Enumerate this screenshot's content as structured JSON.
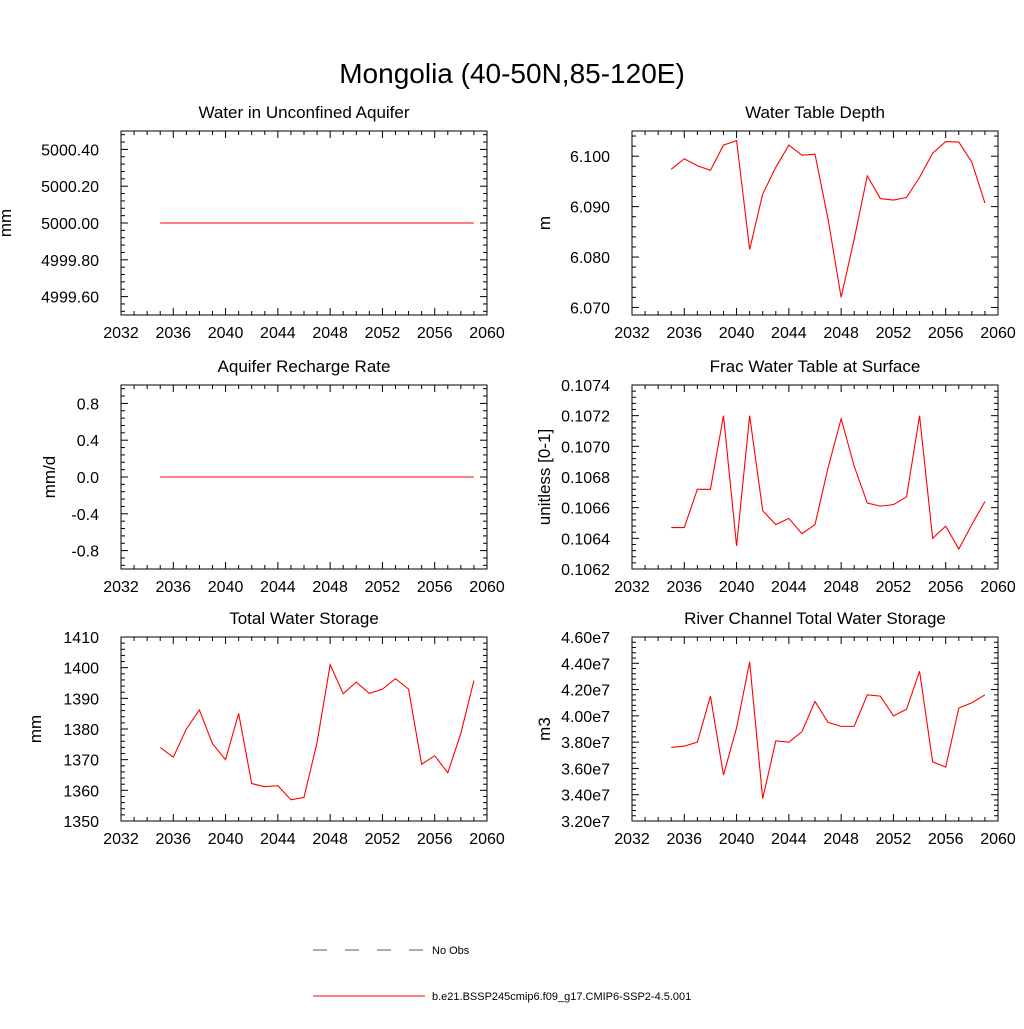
{
  "title": "Mongolia (40-50N,85-120E)",
  "legend": {
    "entries": [
      {
        "label": "No Obs",
        "color": "#4b5fa8",
        "dash": true
      },
      {
        "label": "b.e21.BSSP245cmip6.f09_g17.CMIP6-SSP2-4.5.001",
        "color": "#ff0000",
        "dash": false
      }
    ]
  },
  "chart_data": [
    {
      "type": "line",
      "title": "Water in Unconfined Aquifer",
      "ylabel": "mm",
      "xlim": [
        2032,
        2060
      ],
      "ylim": [
        4999.5,
        5000.5
      ],
      "xticks": [
        2032,
        2036,
        2040,
        2044,
        2048,
        2052,
        2056,
        2060
      ],
      "yticks": [
        4999.6,
        4999.8,
        5000.0,
        5000.2,
        5000.4
      ],
      "ytick_labels": [
        "4999.60",
        "4999.80",
        "5000.00",
        "5000.20",
        "5000.40"
      ],
      "x": [
        2035,
        2036,
        2037,
        2038,
        2039,
        2040,
        2041,
        2042,
        2043,
        2044,
        2045,
        2046,
        2047,
        2048,
        2049,
        2050,
        2051,
        2052,
        2053,
        2054,
        2055,
        2056,
        2057,
        2058,
        2059
      ],
      "series": [
        {
          "color": "#ff0000",
          "values": [
            5000,
            5000,
            5000,
            5000,
            5000,
            5000,
            5000,
            5000,
            5000,
            5000,
            5000,
            5000,
            5000,
            5000,
            5000,
            5000,
            5000,
            5000,
            5000,
            5000,
            5000,
            5000,
            5000,
            5000,
            5000
          ]
        }
      ]
    },
    {
      "type": "line",
      "title": "Water Table Depth",
      "ylabel": "m",
      "xlim": [
        2032,
        2060
      ],
      "ylim": [
        6.0685,
        6.105
      ],
      "xticks": [
        2032,
        2036,
        2040,
        2044,
        2048,
        2052,
        2056,
        2060
      ],
      "yticks": [
        6.07,
        6.08,
        6.09,
        6.1
      ],
      "ytick_labels": [
        "6.070",
        "6.080",
        "6.090",
        "6.100"
      ],
      "x": [
        2035,
        2036,
        2037,
        2038,
        2039,
        2040,
        2041,
        2042,
        2043,
        2044,
        2045,
        2046,
        2047,
        2048,
        2049,
        2050,
        2051,
        2052,
        2053,
        2054,
        2055,
        2056,
        2057,
        2058,
        2059
      ],
      "series": [
        {
          "color": "#ff0000",
          "values": [
            6.0974,
            6.0995,
            6.0981,
            6.0972,
            6.1022,
            6.1031,
            6.0815,
            6.0925,
            6.0978,
            6.1022,
            6.1002,
            6.1004,
            6.0875,
            6.072,
            6.0836,
            6.0961,
            6.0916,
            6.0913,
            6.0918,
            6.0958,
            6.1006,
            6.1029,
            6.1028,
            6.0988,
            6.0907
          ]
        }
      ]
    },
    {
      "type": "line",
      "title": "Aquifer Recharge Rate",
      "ylabel": "mm/d",
      "xlim": [
        2032,
        2060
      ],
      "ylim": [
        -1.0,
        1.0
      ],
      "xticks": [
        2032,
        2036,
        2040,
        2044,
        2048,
        2052,
        2056,
        2060
      ],
      "yticks": [
        -0.8,
        -0.4,
        0.0,
        0.4,
        0.8
      ],
      "ytick_labels": [
        "-0.8",
        "-0.4",
        "0.0",
        "0.4",
        "0.8"
      ],
      "x": [
        2035,
        2036,
        2037,
        2038,
        2039,
        2040,
        2041,
        2042,
        2043,
        2044,
        2045,
        2046,
        2047,
        2048,
        2049,
        2050,
        2051,
        2052,
        2053,
        2054,
        2055,
        2056,
        2057,
        2058,
        2059
      ],
      "series": [
        {
          "color": "#ff0000",
          "values": [
            0,
            0,
            0,
            0,
            0,
            0,
            0,
            0,
            0,
            0,
            0,
            0,
            0,
            0,
            0,
            0,
            0,
            0,
            0,
            0,
            0,
            0,
            0,
            0,
            0
          ]
        }
      ]
    },
    {
      "type": "line",
      "title": "Frac Water Table at Surface",
      "ylabel": "unitless [0-1]",
      "xlim": [
        2032,
        2060
      ],
      "ylim": [
        0.1062,
        0.1074
      ],
      "xticks": [
        2032,
        2036,
        2040,
        2044,
        2048,
        2052,
        2056,
        2060
      ],
      "yticks": [
        0.1062,
        0.1064,
        0.1066,
        0.1068,
        0.107,
        0.1072,
        0.1074
      ],
      "ytick_labels": [
        "0.1062",
        "0.1064",
        "0.1066",
        "0.1068",
        "0.1070",
        "0.1072",
        "0.1074"
      ],
      "x": [
        2035,
        2036,
        2037,
        2038,
        2039,
        2040,
        2041,
        2042,
        2043,
        2044,
        2045,
        2046,
        2047,
        2048,
        2049,
        2050,
        2051,
        2052,
        2053,
        2054,
        2055,
        2056,
        2057,
        2058,
        2059
      ],
      "series": [
        {
          "color": "#ff0000",
          "values": [
            0.10647,
            0.10647,
            0.10672,
            0.10672,
            0.1072,
            0.10635,
            0.1072,
            0.10658,
            0.10649,
            0.10653,
            0.10643,
            0.10649,
            0.10686,
            0.10718,
            0.10687,
            0.10663,
            0.10661,
            0.10662,
            0.10667,
            0.1072,
            0.1064,
            0.10648,
            0.10633,
            0.10649,
            0.10664
          ]
        }
      ]
    },
    {
      "type": "line",
      "title": "Total Water Storage",
      "ylabel": "mm",
      "xlim": [
        2032,
        2060
      ],
      "ylim": [
        1350,
        1410
      ],
      "xticks": [
        2032,
        2036,
        2040,
        2044,
        2048,
        2052,
        2056,
        2060
      ],
      "yticks": [
        1350,
        1360,
        1370,
        1380,
        1390,
        1400,
        1410
      ],
      "ytick_labels": [
        "1350",
        "1360",
        "1370",
        "1380",
        "1390",
        "1400",
        "1410"
      ],
      "x": [
        2035,
        2036,
        2037,
        2038,
        2039,
        2040,
        2041,
        2042,
        2043,
        2044,
        2045,
        2046,
        2047,
        2048,
        2049,
        2050,
        2051,
        2052,
        2053,
        2054,
        2055,
        2056,
        2057,
        2058,
        2059
      ],
      "series": [
        {
          "color": "#ff0000",
          "values": [
            1374,
            1370.8,
            1380,
            1386.2,
            1375.2,
            1370,
            1385.1,
            1362.2,
            1361.2,
            1361.5,
            1356.9,
            1357.7,
            1375.6,
            1401,
            1391.5,
            1395.3,
            1391.6,
            1393,
            1396.4,
            1393,
            1368.5,
            1371.3,
            1365.7,
            1378.6,
            1395.8
          ]
        }
      ]
    },
    {
      "type": "line",
      "title": "River Channel Total Water Storage",
      "ylabel": "m3",
      "xlim": [
        2032,
        2060
      ],
      "ylim": [
        32000000,
        46000000
      ],
      "xticks": [
        2032,
        2036,
        2040,
        2044,
        2048,
        2052,
        2056,
        2060
      ],
      "yticks": [
        32000000,
        34000000,
        36000000,
        38000000,
        40000000,
        42000000,
        44000000,
        46000000
      ],
      "ytick_labels": [
        "3.20e7",
        "3.40e7",
        "3.60e7",
        "3.80e7",
        "4.00e7",
        "4.20e7",
        "4.40e7",
        "4.60e7"
      ],
      "x": [
        2035,
        2036,
        2037,
        2038,
        2039,
        2040,
        2041,
        2042,
        2043,
        2044,
        2045,
        2046,
        2047,
        2048,
        2049,
        2050,
        2051,
        2052,
        2053,
        2054,
        2055,
        2056,
        2057,
        2058,
        2059
      ],
      "series": [
        {
          "color": "#ff0000",
          "values": [
            37600000,
            37700000,
            38000000,
            41500000,
            35500000,
            39100000,
            44100000,
            33700000,
            38100000,
            38000000,
            38800000,
            41100000,
            39500000,
            39200000,
            39200000,
            41600000,
            41500000,
            40000000,
            40500000,
            43400000,
            36500000,
            36100000,
            40600000,
            41000000,
            41600000
          ]
        }
      ]
    }
  ]
}
